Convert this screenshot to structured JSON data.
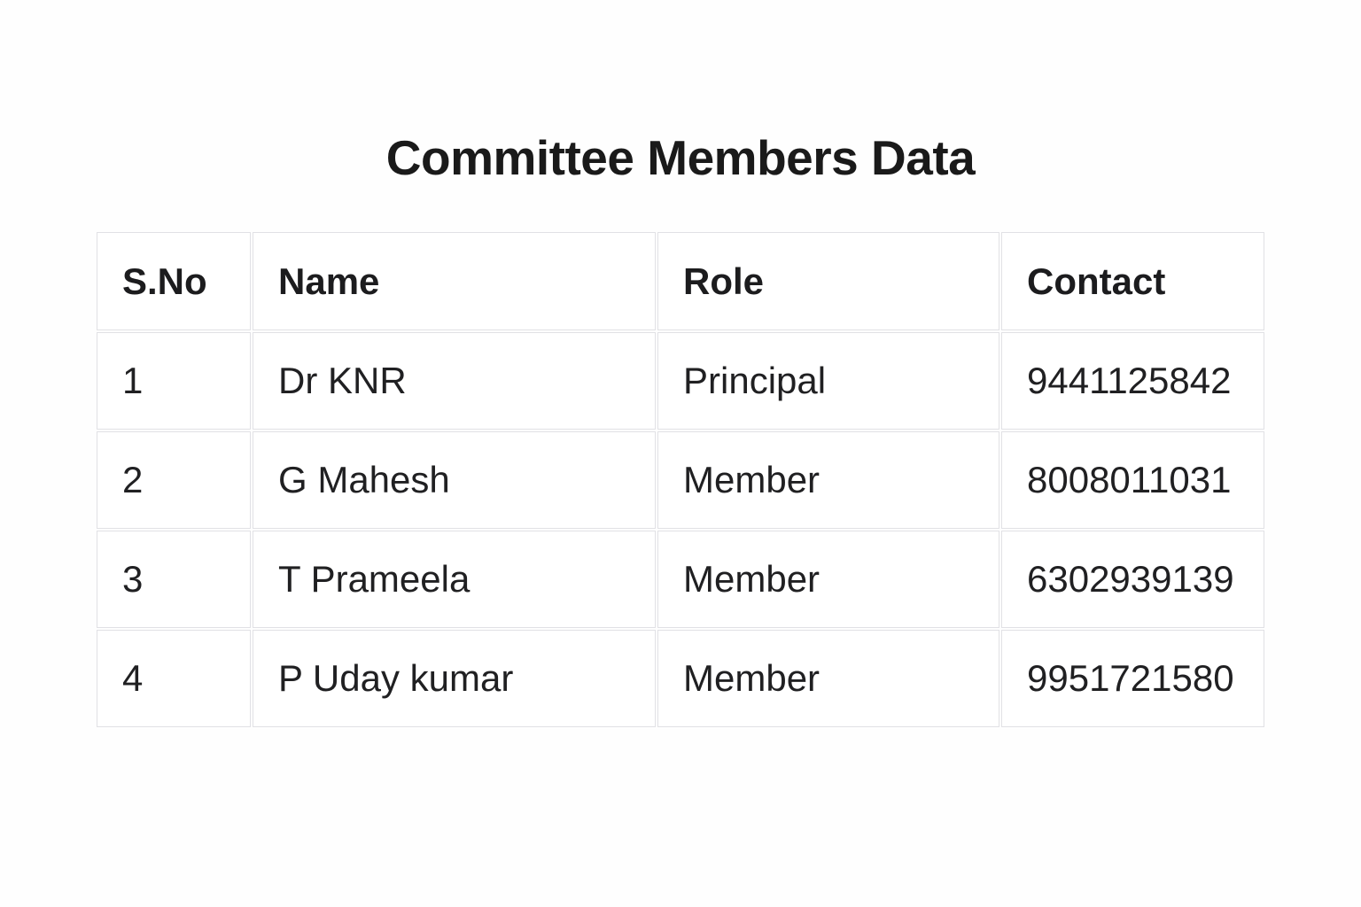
{
  "page": {
    "title": "Committee Members Data"
  },
  "table": {
    "columns": {
      "sno": "S.No",
      "name": "Name",
      "role": "Role",
      "contact": "Contact"
    },
    "rows": [
      {
        "sno": "1",
        "name": "Dr KNR",
        "role": "Principal",
        "contact": "9441125842"
      },
      {
        "sno": "2",
        "name": "G Mahesh",
        "role": "Member",
        "contact": "8008011031"
      },
      {
        "sno": "3",
        "name": "T Prameela",
        "role": "Member",
        "contact": "6302939139"
      },
      {
        "sno": "4",
        "name": "P Uday kumar",
        "role": "Member",
        "contact": "9951721580"
      }
    ]
  },
  "colors": {
    "background": "#fefefe",
    "cell_background": "#ffffff",
    "border": "#e1e1e5",
    "text": "#202022",
    "title_text": "#1a1a1a"
  }
}
